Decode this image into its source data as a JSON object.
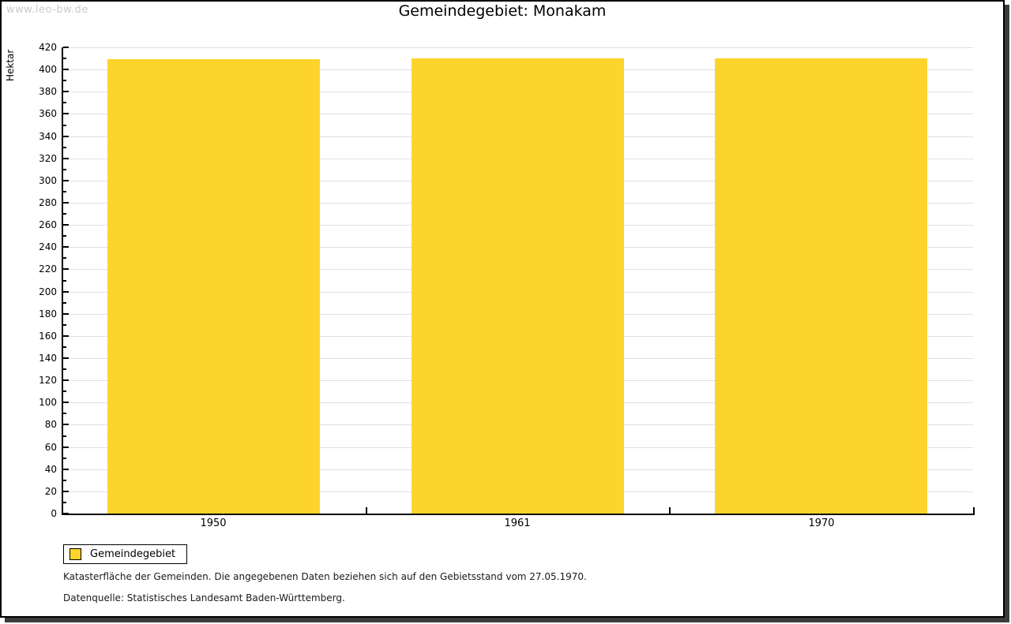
{
  "watermark": "www.leo-bw.de",
  "header": {
    "title": "Gemeindegebiet: Monakam"
  },
  "chart_data": {
    "type": "bar",
    "title": "Gemeindegebiet: Monakam",
    "xlabel": "",
    "ylabel": "Hektar",
    "categories": [
      "1950",
      "1961",
      "1970"
    ],
    "series": [
      {
        "name": "Gemeindegebiet",
        "values": [
          409,
          410,
          410
        ],
        "color": "#fdd42c"
      }
    ],
    "ylim": [
      0,
      420
    ],
    "ytick_step": 20,
    "yminor_step": 10,
    "grid": "horizontal-major",
    "legend_position": "bottom-left"
  },
  "legend": {
    "items": [
      {
        "label": "Gemeindegebiet",
        "color": "#fdd42c"
      }
    ]
  },
  "footnotes": [
    "Katasterfläche der Gemeinden. Die angegebenen Daten beziehen sich auf den Gebietsstand vom 27.05.1970.",
    "Datenquelle: Statistisches Landesamt Baden-Württemberg."
  ],
  "colors": {
    "bar": "#fdd42c",
    "grid": "#e0e0e0",
    "axis": "#000000",
    "watermark": "#c9c9c9",
    "frame_shadow": "#3b3b3b"
  }
}
